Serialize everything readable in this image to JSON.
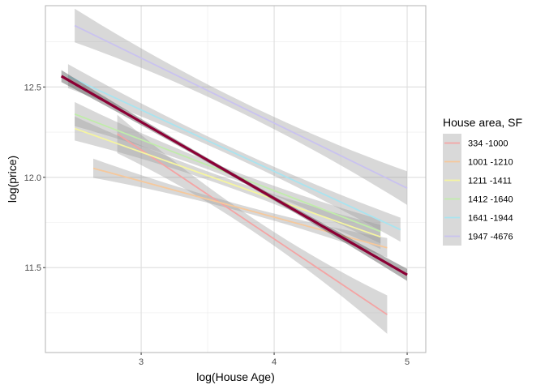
{
  "chart_data": {
    "type": "line",
    "xlabel": "log(House Age)",
    "ylabel": "log(price)",
    "xlim": [
      2.28,
      5.14
    ],
    "ylim": [
      11.03,
      12.95
    ],
    "x_ticks": [
      3,
      4,
      5
    ],
    "y_ticks": [
      11.5,
      12.0,
      12.5
    ],
    "x_tick_labels": [
      "3",
      "4",
      "5"
    ],
    "y_tick_labels": [
      "11.5",
      "12.0",
      "12.5"
    ],
    "grid": true,
    "legend": {
      "title": "House area, SF",
      "position": "right"
    },
    "series": [
      {
        "name": "334 -1000",
        "color": "#f4a4a4",
        "x": [
          2.82,
          4.85
        ],
        "y": [
          12.24,
          11.24
        ],
        "ci": 0.08
      },
      {
        "name": "1001 -1210",
        "color": "#f6c89b",
        "x": [
          2.64,
          4.85
        ],
        "y": [
          12.05,
          11.61
        ],
        "ci": 0.04
      },
      {
        "name": "1211 -1411",
        "color": "#f5f5a0",
        "x": [
          2.5,
          4.8
        ],
        "y": [
          12.27,
          11.67
        ],
        "ci": 0.05
      },
      {
        "name": "1412 -1640",
        "color": "#c0ecaa",
        "x": [
          2.5,
          4.8
        ],
        "y": [
          12.35,
          11.7
        ],
        "ci": 0.05
      },
      {
        "name": "1641 -1944",
        "color": "#a8e4f0",
        "x": [
          2.45,
          4.95
        ],
        "y": [
          12.56,
          11.71
        ],
        "ci": 0.05
      },
      {
        "name": "1947 -4676",
        "color": "#c9c2f0",
        "x": [
          2.5,
          5.0
        ],
        "y": [
          12.84,
          11.94
        ],
        "ci": 0.07
      }
    ],
    "overall": {
      "color": "#8b0035",
      "x": [
        2.4,
        5.0
      ],
      "y": [
        12.56,
        11.46
      ],
      "ci": 0.025
    }
  }
}
